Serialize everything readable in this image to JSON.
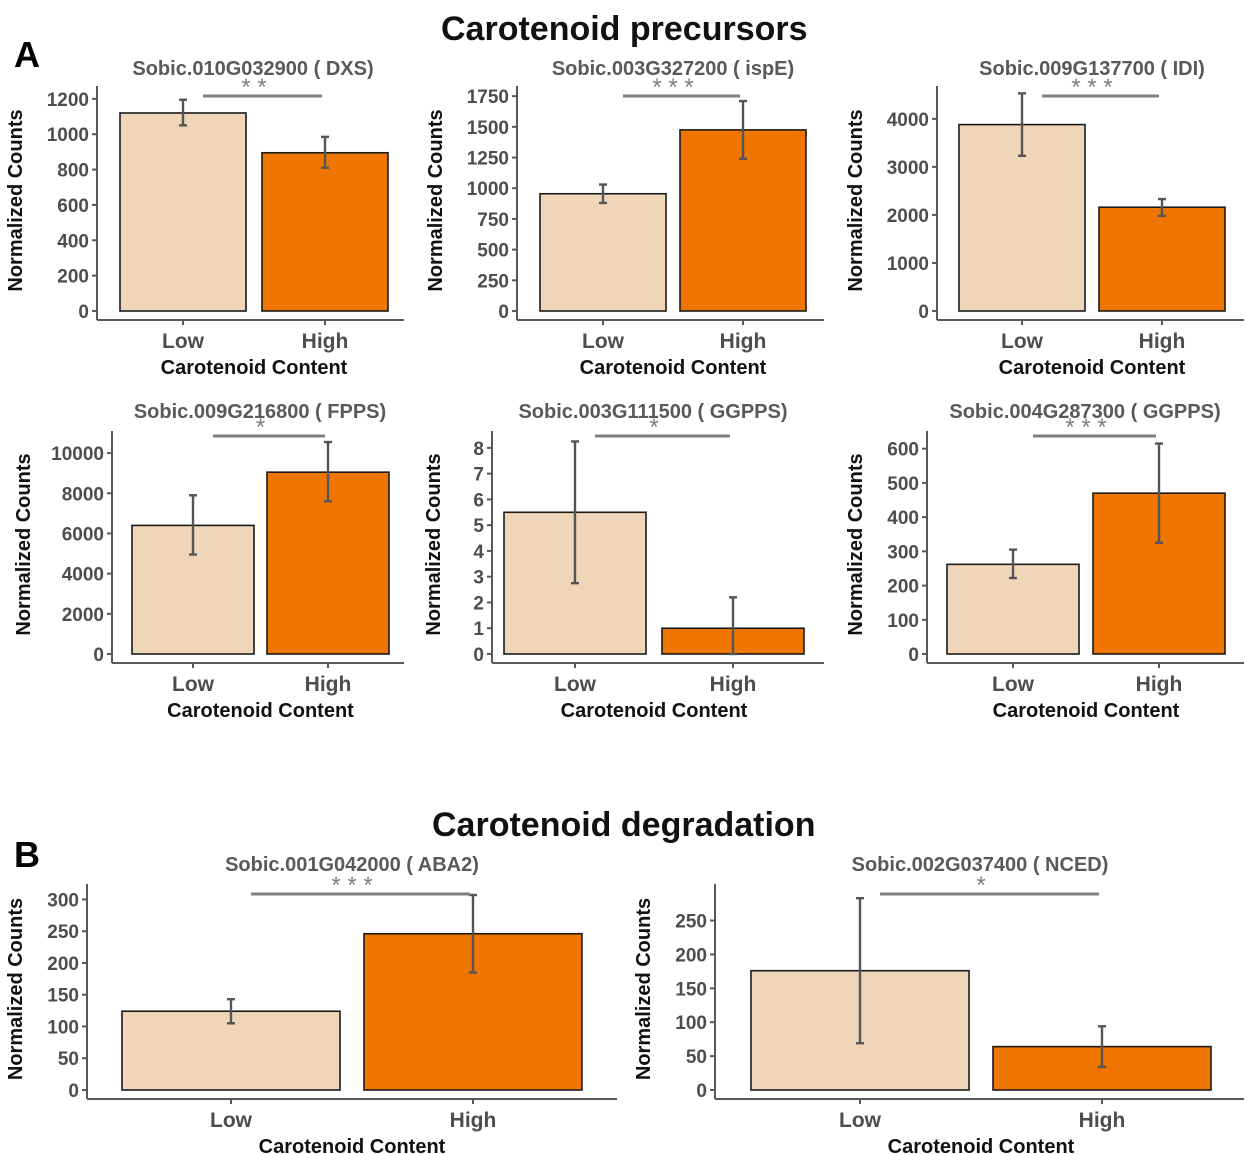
{
  "sections": {
    "a": {
      "letter": "A",
      "title": "Carotenoid precursors"
    },
    "b": {
      "letter": "B",
      "title": "Carotenoid degradation"
    }
  },
  "colors": {
    "low": "#F0D6B8",
    "high": "#EE7600",
    "sig_bar": "#7f7f7f",
    "error_bar": "#555555",
    "axis": "#595959"
  },
  "chart_data": [
    {
      "type": "bar",
      "title": "Sobic.010G032900  ( DXS)",
      "xlabel": "Carotenoid Content",
      "ylabel": "Normalized Counts",
      "categories": [
        "Low",
        "High"
      ],
      "values": [
        1120,
        895
      ],
      "errors": [
        [
          1050,
          1195
        ],
        [
          810,
          985
        ]
      ],
      "yticks": [
        0,
        200,
        400,
        600,
        800,
        1000,
        1200
      ],
      "ylim": [
        0,
        1250
      ],
      "significance": "* *"
    },
    {
      "type": "bar",
      "title": "Sobic.003G327200  ( ispE)",
      "xlabel": "Carotenoid Content",
      "ylabel": "Normalized Counts",
      "categories": [
        "Low",
        "High"
      ],
      "values": [
        955,
        1475
      ],
      "errors": [
        [
          880,
          1030
        ],
        [
          1240,
          1710
        ]
      ],
      "yticks": [
        0,
        250,
        500,
        750,
        1000,
        1250,
        1500,
        1750
      ],
      "ylim": [
        0,
        1800
      ],
      "significance": "* * *"
    },
    {
      "type": "bar",
      "title": "Sobic.009G137700  ( IDI)",
      "xlabel": "Carotenoid Content",
      "ylabel": "Normalized Counts",
      "categories": [
        "Low",
        "High"
      ],
      "values": [
        3880,
        2160
      ],
      "errors": [
        [
          3230,
          4530
        ],
        [
          1980,
          2330
        ]
      ],
      "yticks": [
        0,
        1000,
        2000,
        3000,
        4000
      ],
      "ylim": [
        0,
        4600
      ],
      "significance": "* * *"
    },
    {
      "type": "bar",
      "title": "Sobic.009G216800  ( FPPS)",
      "xlabel": "Carotenoid Content",
      "ylabel": "Normalized Counts",
      "categories": [
        "Low",
        "High"
      ],
      "values": [
        6400,
        9050
      ],
      "errors": [
        [
          4950,
          7900
        ],
        [
          7600,
          10550
        ]
      ],
      "yticks": [
        0,
        2000,
        4000,
        6000,
        8000,
        10000
      ],
      "ylim": [
        0,
        10900
      ],
      "significance": "*"
    },
    {
      "type": "bar",
      "title": "Sobic.003G111500  ( GGPPS)",
      "xlabel": "Carotenoid Content",
      "ylabel": "Normalized Counts",
      "categories": [
        "Low",
        "High"
      ],
      "values": [
        5.5,
        1.0
      ],
      "errors": [
        [
          2.75,
          8.25
        ],
        [
          0.0,
          2.2
        ]
      ],
      "yticks": [
        0,
        1,
        2,
        3,
        4,
        5,
        6,
        7,
        8
      ],
      "ylim": [
        0,
        8.5
      ],
      "significance": "*"
    },
    {
      "type": "bar",
      "title": "Sobic.004G287300  ( GGPPS)",
      "xlabel": "Carotenoid Content",
      "ylabel": "Normalized Counts",
      "categories": [
        "Low",
        "High"
      ],
      "values": [
        262,
        470
      ],
      "errors": [
        [
          222,
          305
        ],
        [
          325,
          615
        ]
      ],
      "yticks": [
        0,
        100,
        200,
        300,
        400,
        500,
        600
      ],
      "ylim": [
        0,
        640
      ],
      "significance": "* * *"
    },
    {
      "type": "bar",
      "title": "Sobic.001G042000  ( ABA2)",
      "xlabel": "Carotenoid Content",
      "ylabel": "Normalized Counts",
      "categories": [
        "Low",
        "High"
      ],
      "values": [
        124,
        246
      ],
      "errors": [
        [
          105,
          143
        ],
        [
          185,
          307
        ]
      ],
      "yticks": [
        0,
        50,
        100,
        150,
        200,
        250,
        300
      ],
      "ylim": [
        0,
        318
      ],
      "significance": "* * *"
    },
    {
      "type": "bar",
      "title": "Sobic.002G037400  ( NCED)",
      "xlabel": "Carotenoid Content",
      "ylabel": "Normalized Counts",
      "categories": [
        "Low",
        "High"
      ],
      "values": [
        176,
        64
      ],
      "errors": [
        [
          69,
          283
        ],
        [
          34,
          94
        ]
      ],
      "yticks": [
        0,
        50,
        100,
        150,
        200,
        250
      ],
      "ylim": [
        0,
        298
      ],
      "significance": "*"
    }
  ]
}
